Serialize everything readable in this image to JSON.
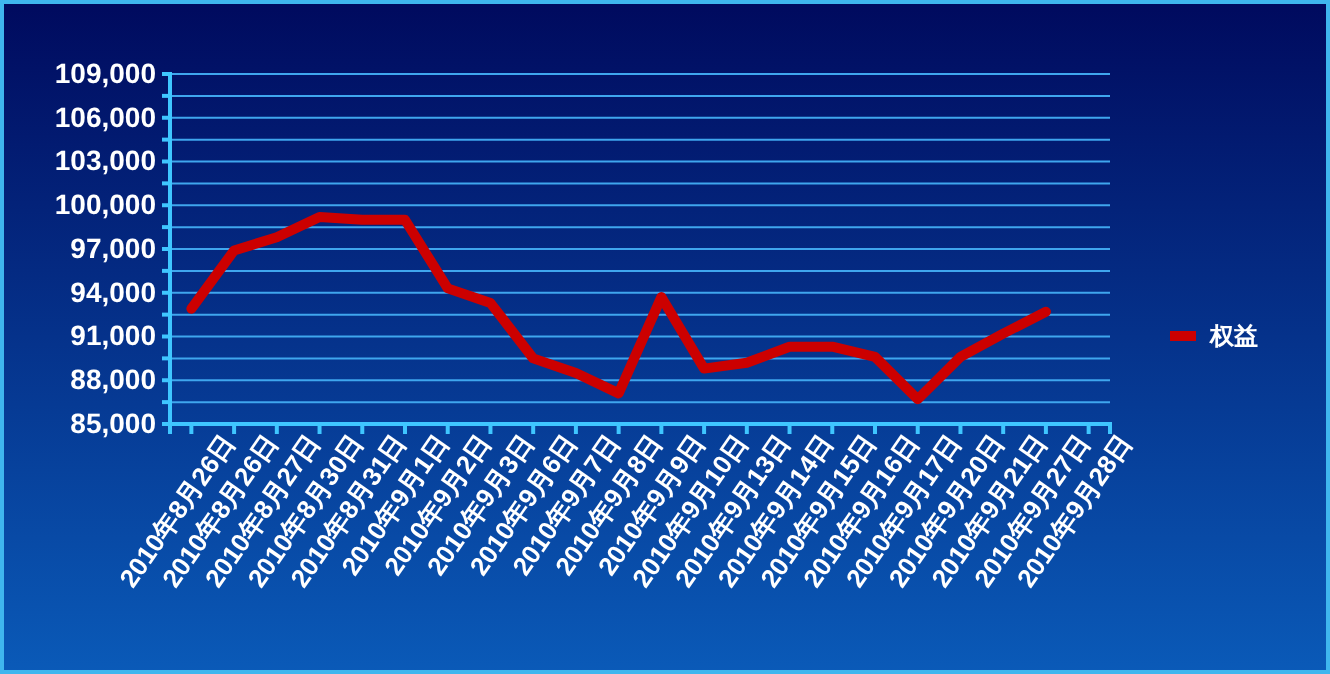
{
  "chart_data": {
    "type": "line",
    "categories": [
      "2010年8月26日",
      "2010年8月26日",
      "2010年8月27日",
      "2010年8月30日",
      "2010年8月31日",
      "2010年9月1日",
      "2010年9月2日",
      "2010年9月3日",
      "2010年9月6日",
      "2010年9月7日",
      "2010年9月8日",
      "2010年9月9日",
      "2010年9月10日",
      "2010年9月13日",
      "2010年9月14日",
      "2010年9月15日",
      "2010年9月16日",
      "2010年9月17日",
      "2010年9月20日",
      "2010年9月21日",
      "2010年9月27日",
      "2010年9月28日"
    ],
    "series": [
      {
        "name": "权益",
        "color": "#cc0000",
        "values": [
          92900,
          96900,
          97800,
          99200,
          99000,
          99000,
          94300,
          93300,
          89500,
          88500,
          87100,
          93700,
          88800,
          89200,
          90300,
          90300,
          89600,
          86700,
          89600,
          91200,
          92700,
          null
        ]
      }
    ],
    "ylim": [
      85000,
      109000
    ],
    "yticks": [
      {
        "value": 85000,
        "label": "85,000"
      },
      {
        "value": 86500,
        "label": null
      },
      {
        "value": 88000,
        "label": "88,000"
      },
      {
        "value": 89500,
        "label": null
      },
      {
        "value": 91000,
        "label": "91,000"
      },
      {
        "value": 92500,
        "label": null
      },
      {
        "value": 94000,
        "label": "94,000"
      },
      {
        "value": 95500,
        "label": null
      },
      {
        "value": 97000,
        "label": "97,000"
      },
      {
        "value": 98500,
        "label": null
      },
      {
        "value": 100000,
        "label": "100,000"
      },
      {
        "value": 101500,
        "label": null
      },
      {
        "value": 103000,
        "label": "103,000"
      },
      {
        "value": 104500,
        "label": null
      },
      {
        "value": 106000,
        "label": "106,000"
      },
      {
        "value": 107500,
        "label": null
      },
      {
        "value": 109000,
        "label": "109,000"
      }
    ],
    "grid": true,
    "legend": "right",
    "marker": "none",
    "line_style": "solid"
  }
}
